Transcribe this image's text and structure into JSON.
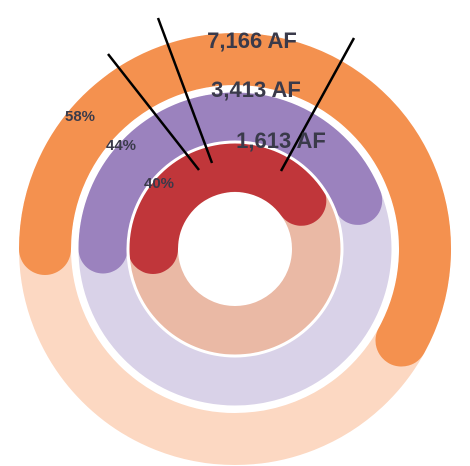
{
  "chart_data": {
    "type": "pie",
    "subtype": "nested-donut",
    "start_angle_deg": 180,
    "direction": "clockwise",
    "rings": [
      {
        "total_label": "7,166 AF",
        "filled_percent": 58,
        "filled_label": "58%",
        "filled_color": "#F4914F",
        "track_color": "#FCD8C2"
      },
      {
        "total_label": "3,413 AF",
        "filled_percent": 44,
        "filled_label": "44%",
        "filled_color": "#9B82BE",
        "track_color": "#D9D2E8"
      },
      {
        "total_label": "1,613 AF",
        "filled_percent": 40,
        "filled_label": "40%",
        "filled_color": "#C0363A",
        "track_color": "#EAB9A5"
      }
    ],
    "text_color": "#3A3A4A",
    "divider_color": "#000000"
  }
}
